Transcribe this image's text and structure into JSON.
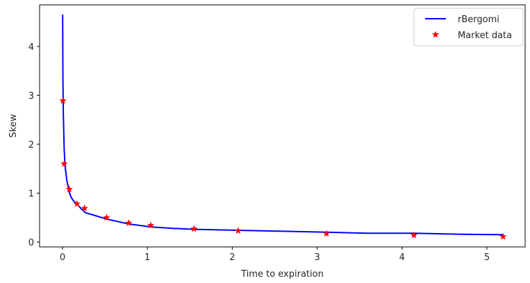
{
  "chart_data": {
    "type": "line",
    "title": "",
    "xlabel": "Time to expiration",
    "ylabel": "Skew",
    "xlim": [
      -0.27,
      5.45
    ],
    "ylim": [
      -0.1,
      4.85
    ],
    "x_ticks": [
      0,
      1,
      2,
      3,
      4,
      5
    ],
    "y_ticks": [
      0,
      1,
      2,
      3,
      4
    ],
    "grid": false,
    "legend_position": "top-right",
    "series": [
      {
        "name": "rBergomi",
        "kind": "line",
        "color": "#0000ff",
        "x": [
          0.002,
          0.005,
          0.01,
          0.02,
          0.03,
          0.05,
          0.08,
          0.1,
          0.13,
          0.18,
          0.22,
          0.27,
          0.35,
          0.52,
          0.78,
          1.04,
          1.3,
          1.55,
          2.07,
          2.6,
          3.11,
          3.6,
          4.14,
          4.7,
          5.2
        ],
        "y": [
          4.65,
          3.3,
          2.6,
          1.9,
          1.55,
          1.27,
          1.02,
          0.92,
          0.84,
          0.76,
          0.68,
          0.6,
          0.56,
          0.47,
          0.37,
          0.31,
          0.28,
          0.26,
          0.24,
          0.22,
          0.2,
          0.18,
          0.18,
          0.16,
          0.15
        ]
      },
      {
        "name": "Market data",
        "kind": "scatter",
        "marker": "star",
        "color": "#ff0000",
        "x": [
          0.005,
          0.02,
          0.08,
          0.17,
          0.26,
          0.52,
          0.78,
          1.04,
          1.55,
          2.07,
          3.11,
          4.14,
          5.19
        ],
        "y": [
          2.89,
          1.6,
          1.08,
          0.78,
          0.69,
          0.5,
          0.39,
          0.34,
          0.27,
          0.23,
          0.17,
          0.14,
          0.11
        ]
      }
    ]
  }
}
